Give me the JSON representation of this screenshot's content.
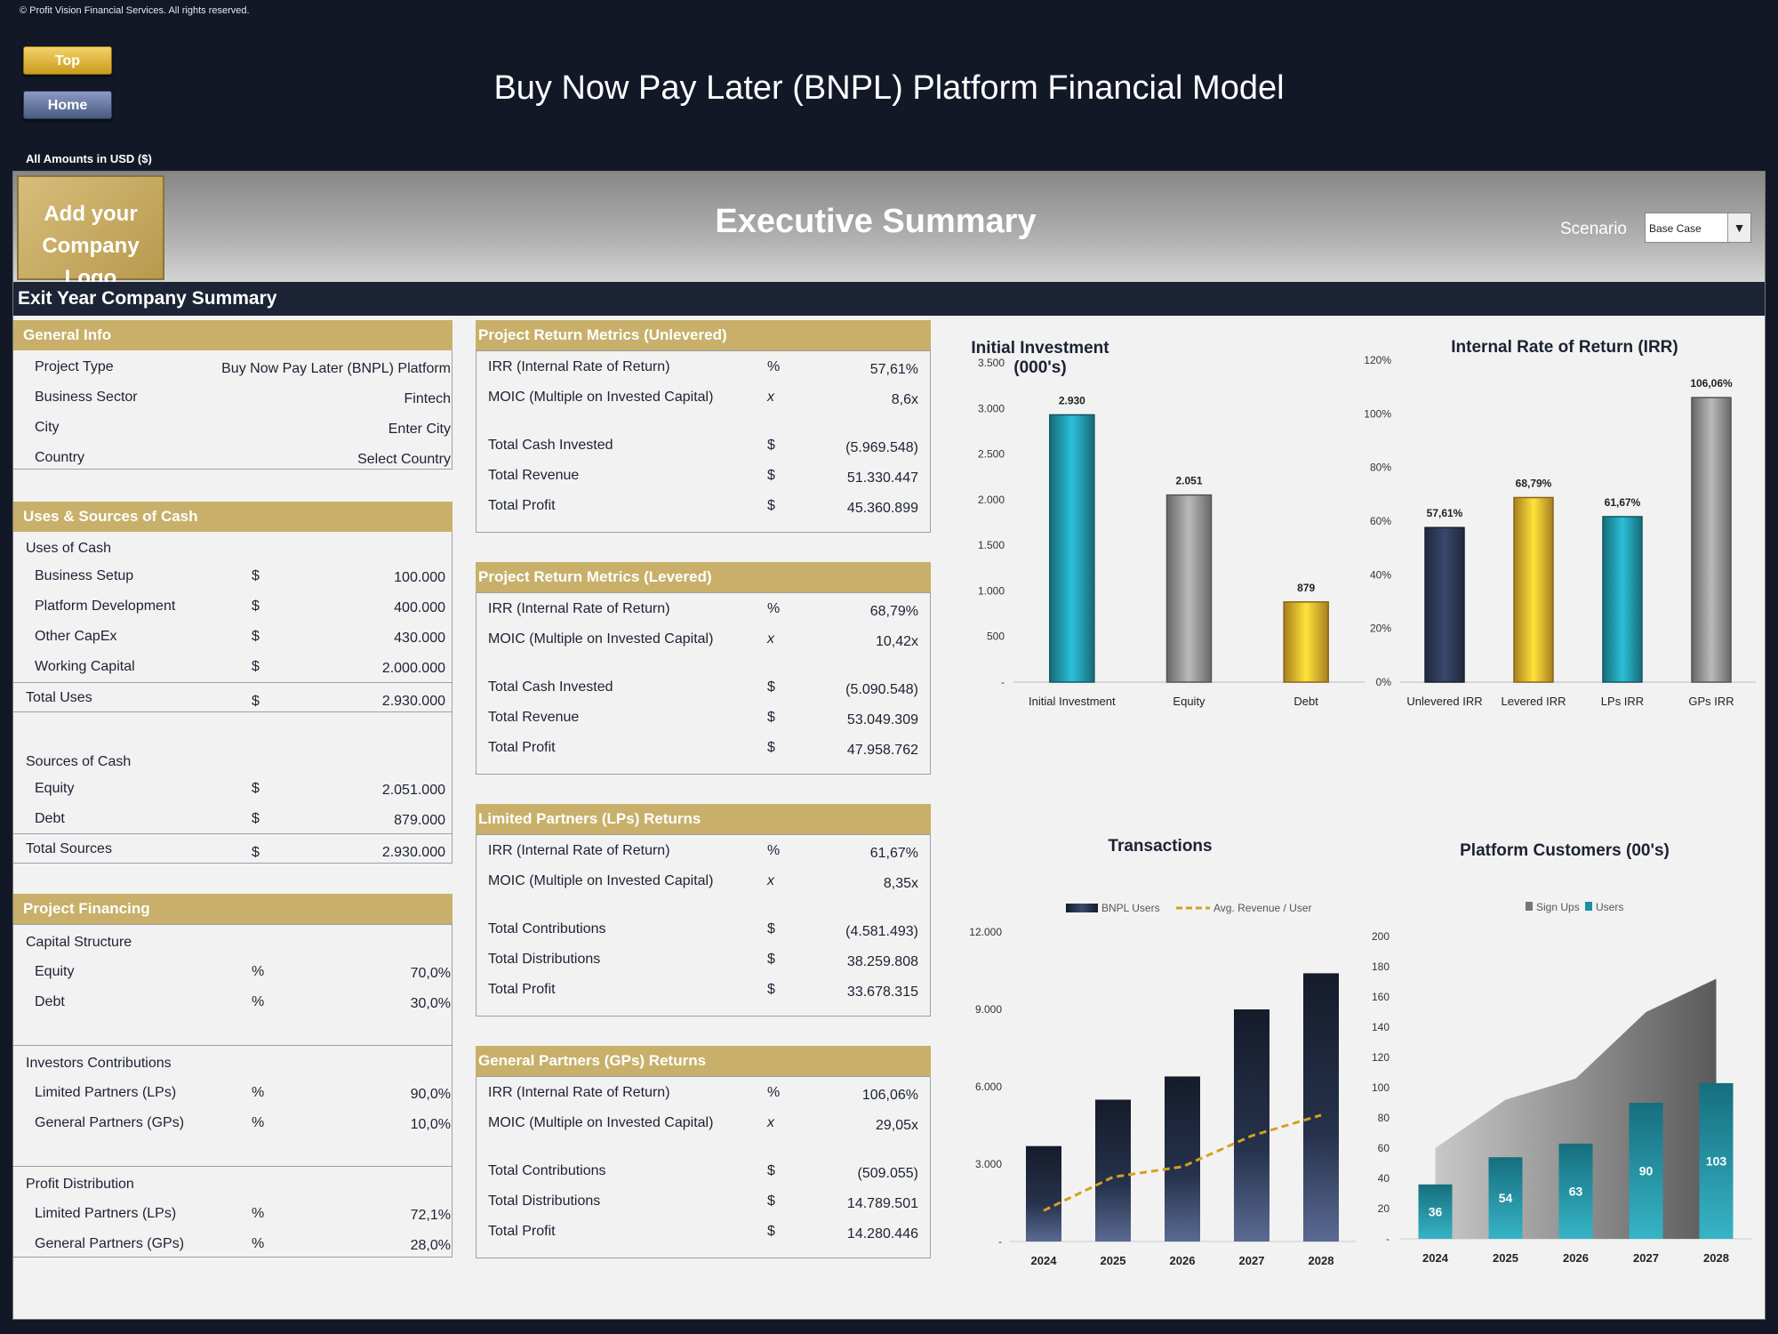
{
  "copyright": "© Profit Vision Financial Services. All rights reserved.",
  "nav": {
    "top": "Top",
    "home": "Home"
  },
  "model_title": "Buy Now Pay Later (BNPL) Platform Financial Model",
  "amounts_note": "All Amounts in  USD ($)",
  "banner": {
    "logo_line1": "Add your",
    "logo_line2": "Company Logo",
    "title": "Executive Summary",
    "scenario_label": "Scenario",
    "scenario_value": "Base Case"
  },
  "section_strip": "Exit Year Company Summary",
  "general_info": {
    "title": "General Info",
    "rows": [
      {
        "label": "Project Type",
        "value": "Buy Now Pay Later (BNPL) Platform"
      },
      {
        "label": "Business Sector",
        "value": "Fintech"
      },
      {
        "label": "City",
        "value": "Enter City"
      },
      {
        "label": "Country",
        "value": "Select Country"
      }
    ]
  },
  "uses_sources": {
    "title": "Uses & Sources of Cash",
    "uses_title": "Uses of Cash",
    "uses": [
      {
        "label": "Business Setup",
        "sym": "$",
        "value": "100.000"
      },
      {
        "label": "Platform Development",
        "sym": "$",
        "value": "400.000"
      },
      {
        "label": "Other CapEx",
        "sym": "$",
        "value": "430.000"
      },
      {
        "label": "Working Capital",
        "sym": "$",
        "value": "2.000.000"
      }
    ],
    "total_uses": {
      "label": "Total Uses",
      "sym": "$",
      "value": "2.930.000"
    },
    "sources_title": "Sources of Cash",
    "sources": [
      {
        "label": "Equity",
        "sym": "$",
        "value": "2.051.000"
      },
      {
        "label": "Debt",
        "sym": "$",
        "value": "879.000"
      }
    ],
    "total_sources": {
      "label": "Total Sources",
      "sym": "$",
      "value": "2.930.000"
    }
  },
  "financing": {
    "title": "Project Financing",
    "capital_title": "Capital Structure",
    "capital": [
      {
        "label": "Equity",
        "sym": "%",
        "value": "70,0%"
      },
      {
        "label": "Debt",
        "sym": "%",
        "value": "30,0%"
      }
    ],
    "investors_title": "Investors Contributions",
    "investors": [
      {
        "label": "Limited Partners (LPs)",
        "sym": "%",
        "value": "90,0%"
      },
      {
        "label": "General Partners (GPs)",
        "sym": "%",
        "value": "10,0%"
      }
    ],
    "profit_title": "Profit Distribution",
    "profit": [
      {
        "label": "Limited Partners (LPs)",
        "sym": "%",
        "value": "72,1%"
      },
      {
        "label": "General Partners (GPs)",
        "sym": "%",
        "value": "28,0%"
      }
    ]
  },
  "metrics": [
    {
      "title": "Project Return Metrics (Unlevered)",
      "rows": [
        {
          "label": "IRR (Internal Rate of Return)",
          "sym": "%",
          "value": "57,61%"
        },
        {
          "label": "MOIC (Multiple on Invested Capital)",
          "sym": "x",
          "value": "8,6x"
        },
        {
          "label": "Total Cash Invested",
          "sym": "$",
          "value": "(5.969.548)"
        },
        {
          "label": "Total Revenue",
          "sym": "$",
          "value": "51.330.447"
        },
        {
          "label": "Total Profit",
          "sym": "$",
          "value": "45.360.899"
        }
      ]
    },
    {
      "title": "Project Return Metrics (Levered)",
      "rows": [
        {
          "label": "IRR (Internal Rate of Return)",
          "sym": "%",
          "value": "68,79%"
        },
        {
          "label": "MOIC (Multiple on Invested Capital)",
          "sym": "x",
          "value": "10,42x"
        },
        {
          "label": "Total Cash Invested",
          "sym": "$",
          "value": "(5.090.548)"
        },
        {
          "label": "Total Revenue",
          "sym": "$",
          "value": "53.049.309"
        },
        {
          "label": "Total Profit",
          "sym": "$",
          "value": "47.958.762"
        }
      ]
    },
    {
      "title": "Limited Partners (LPs) Returns",
      "rows": [
        {
          "label": "IRR (Internal Rate of Return)",
          "sym": "%",
          "value": "61,67%"
        },
        {
          "label": "MOIC (Multiple on Invested Capital)",
          "sym": "x",
          "value": "8,35x"
        },
        {
          "label": "Total Contributions",
          "sym": "$",
          "value": "(4.581.493)"
        },
        {
          "label": "Total Distributions",
          "sym": "$",
          "value": "38.259.808"
        },
        {
          "label": "Total Profit",
          "sym": "$",
          "value": "33.678.315"
        }
      ]
    },
    {
      "title": "General Partners (GPs) Returns",
      "rows": [
        {
          "label": "IRR (Internal Rate of Return)",
          "sym": "%",
          "value": "106,06%"
        },
        {
          "label": "MOIC (Multiple on Invested Capital)",
          "sym": "x",
          "value": "29,05x"
        },
        {
          "label": "Total Contributions",
          "sym": "$",
          "value": "(509.055)"
        },
        {
          "label": "Total Distributions",
          "sym": "$",
          "value": "14.789.501"
        },
        {
          "label": "Total Profit",
          "sym": "$",
          "value": "14.280.446"
        }
      ]
    }
  ],
  "chart_data": [
    {
      "id": "investment",
      "type": "bar",
      "title": "Initial Investment (000's)",
      "categories": [
        "Initial Investment",
        "Equity",
        "Debt"
      ],
      "values": [
        2930,
        2051,
        879
      ],
      "value_labels": [
        "2.930",
        "2.051",
        "879"
      ],
      "colors": [
        "#1f8ea0",
        "#8a8a8a",
        "#e0a82a"
      ],
      "ylim": [
        0,
        3500
      ],
      "yticks": [
        "-",
        "500",
        "1.000",
        "1.500",
        "2.000",
        "2.500",
        "3.000",
        "3.500"
      ]
    },
    {
      "id": "irr",
      "type": "bar",
      "title": "Internal Rate of Return (IRR)",
      "categories": [
        "Unlevered IRR",
        "Levered IRR",
        "LPs IRR",
        "GPs IRR"
      ],
      "values": [
        57.61,
        68.79,
        61.67,
        106.06
      ],
      "value_labels": [
        "57,61%",
        "68,79%",
        "61,67%",
        "106,06%"
      ],
      "colors": [
        "#2a3550",
        "#e0a82a",
        "#1f8ea0",
        "#8a8a8a"
      ],
      "ylim": [
        0,
        120
      ],
      "yticks": [
        "0%",
        "20%",
        "40%",
        "60%",
        "80%",
        "100%",
        "120%"
      ]
    },
    {
      "id": "transactions",
      "type": "bar",
      "title": "Transactions",
      "categories": [
        "2024",
        "2025",
        "2026",
        "2027",
        "2028"
      ],
      "series": [
        {
          "name": "BNPL Users",
          "values": [
            3700,
            5500,
            6400,
            9000,
            10400
          ]
        },
        {
          "name": "Avg. Revenue / User",
          "type": "line",
          "values": [
            1200,
            2500,
            2900,
            4100,
            4900
          ]
        }
      ],
      "ylim": [
        0,
        12000
      ],
      "yticks": [
        "-",
        "3.000",
        "6.000",
        "9.000",
        "12.000"
      ]
    },
    {
      "id": "customers",
      "type": "bar",
      "title": "Platform Customers (00's)",
      "categories": [
        "2024",
        "2025",
        "2026",
        "2027",
        "2028"
      ],
      "series": [
        {
          "name": "Sign Ups",
          "type": "area",
          "values": [
            60,
            92,
            106,
            150,
            172
          ]
        },
        {
          "name": "Users",
          "values": [
            36,
            54,
            63,
            90,
            103
          ]
        }
      ],
      "value_labels": [
        "36",
        "54",
        "63",
        "90",
        "103"
      ],
      "ylim": [
        0,
        200
      ],
      "yticks": [
        "-",
        "20",
        "40",
        "60",
        "80",
        "100",
        "120",
        "140",
        "160",
        "180",
        "200"
      ]
    }
  ]
}
